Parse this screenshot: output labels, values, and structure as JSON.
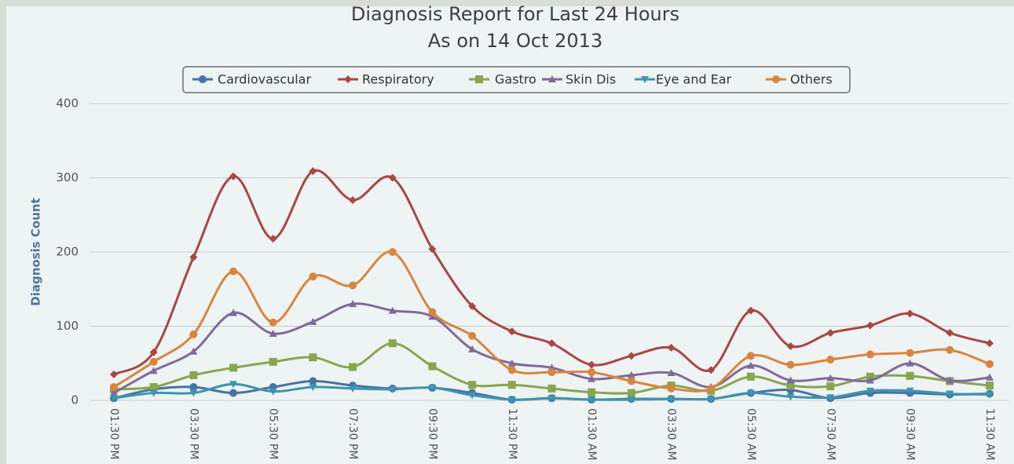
{
  "chart_data": {
    "type": "line",
    "title": "Diagnosis Report for Last 24 Hours",
    "subtitle": "As on 14 Oct 2013",
    "y_label": "Diagnosis Count",
    "categories": [
      "01:30 PM",
      null,
      "03:30 PM",
      null,
      "05:30 PM",
      null,
      "07:30 PM",
      null,
      "09:30 PM",
      null,
      "11:30 PM",
      null,
      "01:30 AM",
      null,
      "03:30 AM",
      null,
      "05:30 AM",
      null,
      "07:30 AM",
      null,
      "09:30 AM",
      null,
      "11:30 AM"
    ],
    "ylim": [
      0,
      400
    ],
    "yticks": [
      0,
      100,
      200,
      300,
      400
    ],
    "grid": true,
    "smooth": true,
    "legend": "top",
    "series": [
      {
        "name": "Cardiovascular",
        "color": "#4572a7",
        "marker": "circle",
        "values": [
          3,
          15,
          18,
          10,
          18,
          26,
          20,
          16,
          17,
          10,
          1,
          3,
          1,
          2,
          2,
          2,
          10,
          14,
          3,
          10,
          10,
          8,
          9
        ]
      },
      {
        "name": "Respiratory",
        "color": "#aa4643",
        "marker": "diamond",
        "values": [
          35,
          65,
          193,
          302,
          218,
          309,
          270,
          300,
          204,
          127,
          93,
          77,
          48,
          60,
          71,
          41,
          121,
          73,
          91,
          101,
          117,
          91,
          77
        ]
      },
      {
        "name": "Gastro",
        "color": "#89a54e",
        "marker": "square",
        "values": [
          15,
          18,
          34,
          44,
          52,
          58,
          45,
          77,
          46,
          21,
          21,
          16,
          11,
          10,
          20,
          13,
          32,
          20,
          19,
          32,
          33,
          26,
          20
        ]
      },
      {
        "name": "Skin Dis",
        "color": "#80699b",
        "marker": "triangle",
        "values": [
          10,
          40,
          66,
          118,
          90,
          106,
          130,
          121,
          113,
          69,
          50,
          44,
          29,
          34,
          37,
          18,
          47,
          27,
          30,
          27,
          50,
          27,
          31
        ]
      },
      {
        "name": "Eye and Ear",
        "color": "#3d96ae",
        "marker": "triangle-down",
        "values": [
          3,
          10,
          10,
          22,
          12,
          18,
          16,
          15,
          17,
          7,
          1,
          3,
          1,
          1,
          2,
          2,
          10,
          5,
          4,
          13,
          13,
          9,
          8
        ]
      },
      {
        "name": "Others",
        "color": "#db843d",
        "marker": "circle",
        "values": [
          18,
          52,
          89,
          174,
          105,
          167,
          155,
          200,
          119,
          87,
          41,
          38,
          38,
          26,
          16,
          16,
          60,
          48,
          55,
          62,
          64,
          68,
          49
        ]
      }
    ]
  }
}
